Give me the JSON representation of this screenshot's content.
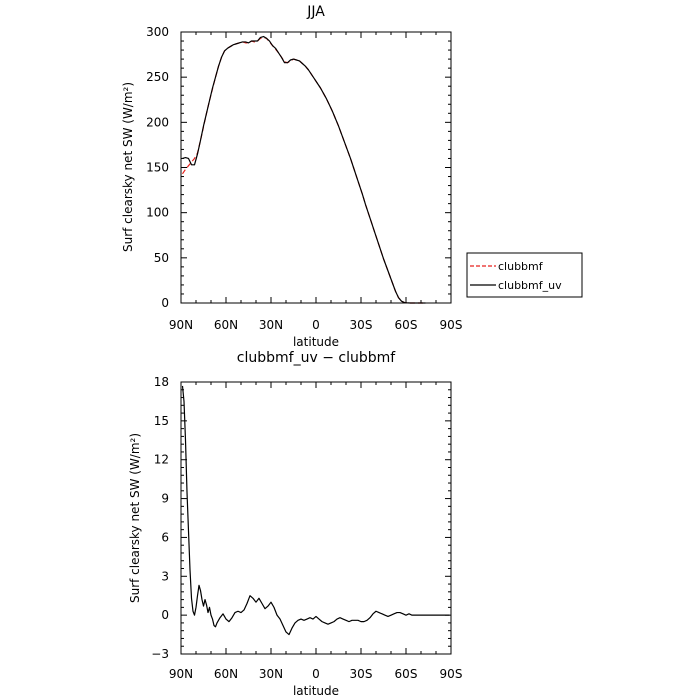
{
  "charts": [
    {
      "title": "JJA",
      "xlabel": "latitude",
      "ylabel": "Surf clearsky net SW (W/m²)",
      "xticklabels": [
        "90N",
        "60N",
        "30N",
        "0",
        "30S",
        "60S",
        "90S"
      ],
      "yticklabels": [
        "0",
        "50",
        "100",
        "150",
        "200",
        "250",
        "300"
      ]
    },
    {
      "title": "clubbmf_uv − clubbmf",
      "xlabel": "latitude",
      "ylabel": "Surf clearsky net SW (W/m²)",
      "xticklabels": [
        "90N",
        "60N",
        "30N",
        "0",
        "30S",
        "60S",
        "90S"
      ],
      "yticklabels": [
        "−3",
        "0",
        "3",
        "6",
        "9",
        "12",
        "15",
        "18"
      ]
    }
  ],
  "legend": {
    "items": [
      {
        "label": "clubbmf",
        "color": "#e8221d",
        "dash": true
      },
      {
        "label": "clubbmf_uv",
        "color": "#000000",
        "dash": false
      }
    ]
  },
  "chart_data": [
    {
      "type": "line",
      "title": "JJA",
      "xlabel": "latitude",
      "ylabel": "Surf clearsky net SW (W/m²)",
      "xlim": [
        90,
        -90
      ],
      "ylim": [
        0,
        300
      ],
      "xticks": [
        90,
        60,
        30,
        0,
        -30,
        -60,
        -90
      ],
      "yticks": [
        0,
        50,
        100,
        150,
        200,
        250,
        300
      ],
      "legend_position": "right",
      "series": [
        {
          "name": "clubbmf",
          "color": "#e8221d",
          "dash": true,
          "x": [
            89,
            87,
            85,
            83,
            81,
            79,
            77,
            75,
            73,
            71,
            69,
            67,
            65,
            63,
            61,
            59,
            57,
            55,
            53,
            51,
            49,
            47,
            45,
            43,
            41,
            39,
            37,
            35,
            33,
            31,
            29,
            27,
            25,
            23,
            21,
            19,
            17,
            15,
            13,
            11,
            9,
            7,
            5,
            3,
            1,
            -1,
            -3,
            -5,
            -7,
            -9,
            -11,
            -13,
            -15,
            -17,
            -19,
            -21,
            -23,
            -25,
            -27,
            -29,
            -31,
            -33,
            -35,
            -37,
            -39,
            -41,
            -43,
            -45,
            -47,
            -49,
            -51,
            -53,
            -55,
            -57,
            -59,
            -61,
            -63,
            -65,
            -67,
            -69,
            -71,
            -73
          ],
          "y": [
            143,
            148,
            152,
            156,
            160,
            166,
            180,
            195,
            210,
            224,
            237,
            250,
            262,
            272,
            279,
            282,
            284,
            286,
            287,
            288,
            289,
            288,
            288,
            290,
            289,
            290,
            293,
            294,
            293,
            289,
            285,
            281,
            277,
            272,
            267,
            266,
            268,
            270,
            269,
            268,
            265,
            262,
            258,
            253,
            248,
            243,
            238,
            232,
            226,
            219,
            212,
            204,
            196,
            187,
            178,
            169,
            160,
            150,
            140,
            130,
            120,
            109,
            99,
            89,
            79,
            69,
            59,
            49,
            40,
            31,
            22,
            13,
            6,
            2,
            0.5,
            0.1,
            0,
            0,
            0,
            0,
            0,
            0
          ]
        },
        {
          "name": "clubbmf_uv",
          "color": "#000000",
          "dash": false,
          "x": [
            89,
            87,
            85,
            83,
            81,
            79,
            77,
            75,
            73,
            71,
            69,
            67,
            65,
            63,
            61,
            59,
            57,
            55,
            53,
            51,
            49,
            47,
            45,
            43,
            41,
            39,
            37,
            35,
            33,
            31,
            29,
            27,
            25,
            23,
            21,
            19,
            17,
            15,
            13,
            11,
            9,
            7,
            5,
            3,
            1,
            -1,
            -3,
            -5,
            -7,
            -9,
            -11,
            -13,
            -15,
            -17,
            -19,
            -21,
            -23,
            -25,
            -27,
            -29,
            -31,
            -33,
            -35,
            -37,
            -39,
            -41,
            -43,
            -45,
            -47,
            -49,
            -51,
            -53,
            -55,
            -57,
            -59,
            -61,
            -63,
            -65,
            -67,
            -69,
            -71,
            -73
          ],
          "y": [
            160,
            161,
            160,
            153,
            153,
            165,
            180,
            196,
            210,
            224,
            238,
            250,
            262,
            272,
            279,
            282,
            284,
            286,
            287,
            288,
            289,
            289,
            288,
            290,
            290,
            290,
            294,
            295,
            293,
            290,
            285,
            282,
            277,
            272,
            266,
            266,
            269,
            270,
            269,
            268,
            265,
            262,
            258,
            253,
            248,
            243,
            238,
            232,
            226,
            219,
            212,
            204,
            196,
            187,
            178,
            169,
            160,
            150,
            140,
            130,
            120,
            109,
            99,
            89,
            79,
            69,
            59,
            49,
            40,
            31,
            22,
            13,
            6,
            2,
            0.5,
            0.1,
            0,
            0,
            0,
            0,
            0,
            0
          ]
        }
      ]
    },
    {
      "type": "line",
      "title": "clubbmf_uv − clubbmf",
      "xlabel": "latitude",
      "ylabel": "Surf clearsky net SW (W/m²)",
      "xlim": [
        90,
        -90
      ],
      "ylim": [
        -3,
        18
      ],
      "xticks": [
        90,
        60,
        30,
        0,
        -30,
        -60,
        -90
      ],
      "yticks": [
        -3,
        0,
        3,
        6,
        9,
        12,
        15,
        18
      ],
      "series": [
        {
          "color": "#000000",
          "dash": false,
          "x": [
            89,
            88,
            87,
            86,
            85,
            84,
            83,
            82,
            81,
            80,
            79,
            78,
            77,
            76,
            75,
            74,
            73,
            72,
            71,
            70,
            69,
            68,
            67,
            66,
            64,
            62,
            60,
            58,
            56,
            54,
            52,
            50,
            48,
            46,
            44,
            42,
            40,
            38,
            36,
            34,
            32,
            30,
            28,
            26,
            24,
            22,
            20,
            18,
            16,
            14,
            12,
            10,
            8,
            6,
            4,
            2,
            0,
            -2,
            -4,
            -6,
            -8,
            -10,
            -12,
            -14,
            -16,
            -18,
            -20,
            -22,
            -24,
            -26,
            -28,
            -30,
            -32,
            -34,
            -36,
            -38,
            -40,
            -42,
            -44,
            -46,
            -48,
            -50,
            -52,
            -54,
            -56,
            -58,
            -60,
            -62,
            -64,
            -66,
            -68,
            -70,
            -75,
            -80,
            -85,
            -89
          ],
          "y": [
            17.7,
            16.5,
            13.5,
            9.5,
            6.5,
            3.5,
            1.3,
            0.3,
            0.0,
            0.6,
            1.5,
            2.3,
            1.9,
            1.2,
            0.7,
            1.2,
            0.8,
            0.2,
            0.6,
            0.0,
            -0.3,
            -0.8,
            -0.9,
            -0.6,
            -0.2,
            0.1,
            -0.3,
            -0.5,
            -0.2,
            0.2,
            0.3,
            0.2,
            0.4,
            0.9,
            1.5,
            1.3,
            1.0,
            1.3,
            0.9,
            0.5,
            0.7,
            1.0,
            0.6,
            0.0,
            -0.3,
            -0.8,
            -1.3,
            -1.5,
            -1.0,
            -0.6,
            -0.4,
            -0.3,
            -0.4,
            -0.3,
            -0.2,
            -0.3,
            -0.1,
            -0.3,
            -0.5,
            -0.6,
            -0.7,
            -0.6,
            -0.5,
            -0.3,
            -0.2,
            -0.3,
            -0.4,
            -0.5,
            -0.4,
            -0.4,
            -0.4,
            -0.5,
            -0.5,
            -0.4,
            -0.2,
            0.1,
            0.3,
            0.2,
            0.1,
            0.0,
            -0.1,
            0.0,
            0.1,
            0.2,
            0.2,
            0.1,
            0.0,
            0.1,
            0.0,
            0.0,
            0.0,
            0.0,
            0.0,
            0.0,
            0.0,
            0.0
          ]
        }
      ]
    }
  ]
}
